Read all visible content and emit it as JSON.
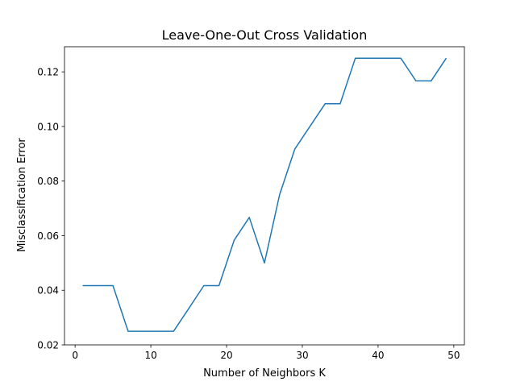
{
  "chart_data": {
    "type": "line",
    "title": "Leave-One-Out Cross Validation",
    "xlabel": "Number of Neighbors K",
    "ylabel": "Misclassification Error",
    "xlim": [
      -1.4,
      51.4
    ],
    "ylim": [
      0.02,
      0.1292
    ],
    "xticks": [
      0,
      10,
      20,
      30,
      40,
      50
    ],
    "xtick_labels": [
      "0",
      "10",
      "20",
      "30",
      "40",
      "50"
    ],
    "yticks": [
      0.02,
      0.04,
      0.06,
      0.08,
      0.1,
      0.12
    ],
    "ytick_labels": [
      "0.02",
      "0.04",
      "0.06",
      "0.08",
      "0.10",
      "0.12"
    ],
    "grid": false,
    "series": [
      {
        "color": "#1f77b4",
        "x": [
          1,
          3,
          5,
          7,
          9,
          11,
          13,
          15,
          17,
          19,
          21,
          23,
          25,
          27,
          29,
          31,
          33,
          35,
          37,
          39,
          41,
          43,
          45,
          47,
          49
        ],
        "y": [
          0.0417,
          0.0417,
          0.0417,
          0.025,
          0.025,
          0.025,
          0.025,
          0.0333,
          0.0417,
          0.0417,
          0.0583,
          0.0667,
          0.05,
          0.075,
          0.0917,
          0.1,
          0.1083,
          0.1083,
          0.125,
          0.125,
          0.125,
          0.125,
          0.1167,
          0.1167,
          0.125
        ]
      }
    ]
  }
}
